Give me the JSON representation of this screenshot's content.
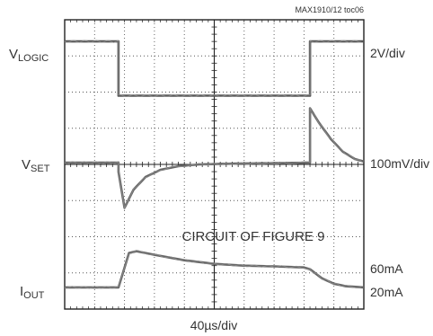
{
  "chart_data": {
    "type": "line",
    "title": "",
    "figure_id": "MAX1910/12 toc06",
    "annotation": "CIRCUIT OF FIGURE 9",
    "xlabel": "40µs/div",
    "grid": {
      "x_divisions": 10,
      "y_divisions": 8,
      "shown": true
    },
    "x_unit": "div",
    "xlim": [
      0,
      10
    ],
    "ylim": [
      0,
      8
    ],
    "channels": [
      {
        "name": "V",
        "subscript": "LOGIC",
        "scale": "2V/div",
        "color": "#555555",
        "x": [
          0,
          1.8,
          1.8,
          8.2,
          8.2,
          10
        ],
        "y": [
          7.4,
          7.4,
          5.9,
          5.9,
          7.4,
          7.4
        ]
      },
      {
        "name": "V",
        "subscript": "SET",
        "scale": "100mV/div",
        "color": "#666666",
        "x": [
          0,
          1.8,
          1.8,
          2.0,
          2.3,
          2.7,
          3.2,
          3.8,
          4.5,
          5.5,
          6.5,
          7.5,
          8.2,
          8.2,
          8.5,
          8.9,
          9.3,
          9.7,
          10
        ],
        "y": [
          4.05,
          4.05,
          3.8,
          2.8,
          3.3,
          3.65,
          3.85,
          3.95,
          4.0,
          4.02,
          4.03,
          4.04,
          4.05,
          5.55,
          5.15,
          4.7,
          4.35,
          4.15,
          4.08
        ]
      },
      {
        "name": "I",
        "subscript": "OUT",
        "scale": "60mA",
        "scale2": "20mA",
        "color": "#666666",
        "x": [
          0,
          1.8,
          2.15,
          2.4,
          3.0,
          4.0,
          5.0,
          6.0,
          7.0,
          8.0,
          8.2,
          8.6,
          9.0,
          9.4,
          10
        ],
        "y": [
          0.6,
          0.6,
          1.55,
          1.6,
          1.5,
          1.35,
          1.25,
          1.2,
          1.18,
          1.15,
          1.1,
          0.85,
          0.7,
          0.63,
          0.6
        ]
      }
    ]
  }
}
